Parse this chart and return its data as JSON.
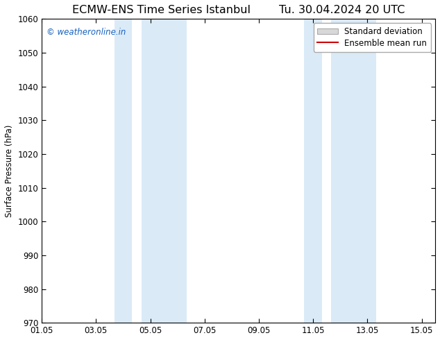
{
  "title_left": "ECMW-ENS Time Series Istanbul",
  "title_right": "Tu. 30.04.2024 20 UTC",
  "ylabel": "Surface Pressure (hPa)",
  "ylim": [
    970,
    1060
  ],
  "yticks": [
    970,
    980,
    990,
    1000,
    1010,
    1020,
    1030,
    1040,
    1050,
    1060
  ],
  "xtick_labels": [
    "01.05",
    "03.05",
    "05.05",
    "07.05",
    "09.05",
    "11.05",
    "13.05",
    "15.05"
  ],
  "xtick_positions": [
    1,
    3,
    5,
    7,
    9,
    11,
    13,
    15
  ],
  "xlim": [
    1,
    15.5
  ],
  "shading_regions": [
    {
      "xmin": 3.67,
      "xmax": 4.33
    },
    {
      "xmin": 4.67,
      "xmax": 6.33
    },
    {
      "xmin": 10.67,
      "xmax": 11.33
    },
    {
      "xmin": 11.67,
      "xmax": 13.33
    }
  ],
  "shading_color": "#daeaf7",
  "background_color": "#ffffff",
  "watermark_text": "© weatheronline.in",
  "watermark_color": "#1560bd",
  "watermark_fontsize": 8.5,
  "legend_std_label": "Standard deviation",
  "legend_ens_label": "Ensemble mean run",
  "legend_std_facecolor": "#d8d8d8",
  "legend_std_edgecolor": "#aaaaaa",
  "legend_ens_color": "#cc0000",
  "title_fontsize": 11.5,
  "axis_fontsize": 8.5,
  "ylabel_fontsize": 8.5
}
